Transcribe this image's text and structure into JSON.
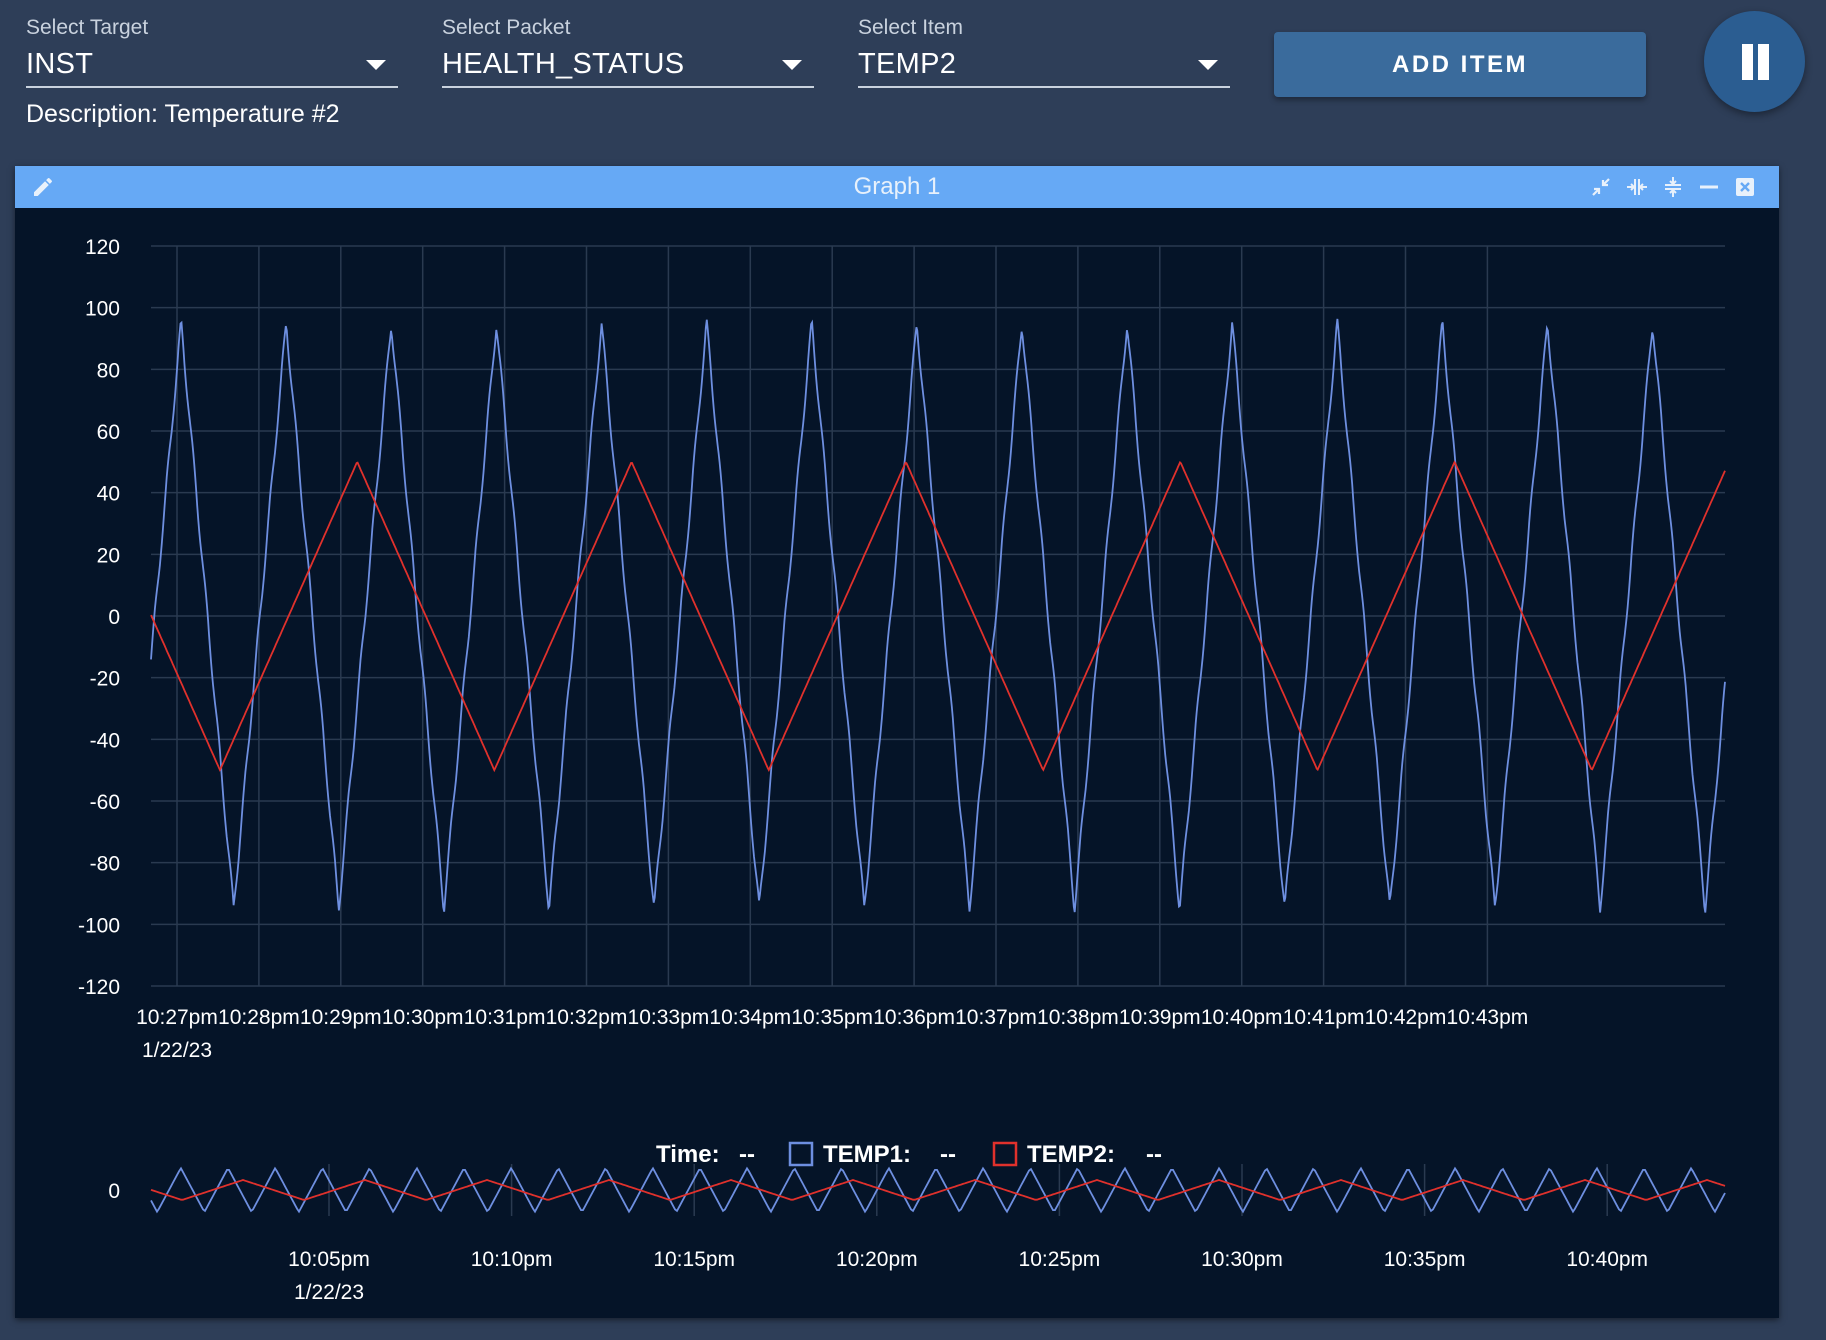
{
  "selectors": {
    "target": {
      "label": "Select Target",
      "value": "INST"
    },
    "packet": {
      "label": "Select Packet",
      "value": "HEALTH_STATUS"
    },
    "item": {
      "label": "Select Item",
      "value": "TEMP2"
    }
  },
  "description": "Description: Temperature #2",
  "add_item_label": "ADD ITEM",
  "icons": {
    "pause": "pause-icon",
    "edit": "pencil-icon",
    "collapse": "collapse-icon",
    "compress_horizontal": "compress-horizontal-icon",
    "compress_vertical": "compress-vertical-icon",
    "minimize": "minimize-icon",
    "close": "close-icon"
  },
  "graph": {
    "title": "Graph 1",
    "legend": {
      "time_label": "Time:",
      "time_value": "--",
      "temp1_label": "TEMP1:",
      "temp1_value": "--",
      "temp2_label": "TEMP2:",
      "temp2_value": "--"
    }
  },
  "chart_data": [
    {
      "type": "line",
      "title": "",
      "ylim": [
        -120,
        120
      ],
      "yticks": [
        120,
        100,
        80,
        60,
        40,
        20,
        0,
        -20,
        -40,
        -60,
        -80,
        -100,
        -120
      ],
      "x_tick_labels": [
        "10:27pm",
        "10:28pm",
        "10:29pm",
        "10:30pm",
        "10:31pm",
        "10:32pm",
        "10:33pm",
        "10:34pm",
        "10:35pm",
        "10:36pm",
        "10:37pm",
        "10:38pm",
        "10:39pm",
        "10:40pm",
        "10:41pm",
        "10:42pm",
        "10:43pm"
      ],
      "x_date_label": "1/22/23",
      "grid": true,
      "series": [
        {
          "name": "TEMP1",
          "color": "#6e8fe0",
          "description_values": "triangle wave between -95 and 95",
          "peaks_x_min": [
            0.05,
            1.33,
            2.62,
            3.9,
            5.18,
            6.47,
            7.75,
            9.03,
            10.32,
            11.6,
            12.88,
            14.17,
            15.45
          ],
          "amplitude": 95
        },
        {
          "name": "TEMP2",
          "color": "#e0312c",
          "description_values": "triangle wave between -50 and 50",
          "peaks_x_min": [
            2.2,
            5.55,
            8.9,
            12.25,
            15.6
          ],
          "amplitude": 50
        }
      ]
    },
    {
      "type": "line",
      "title": "",
      "yticks": [
        0
      ],
      "x_tick_labels": [
        "10:05pm",
        "10:10pm",
        "10:15pm",
        "10:20pm",
        "10:25pm",
        "10:30pm",
        "10:35pm",
        "10:40pm"
      ],
      "x_date_label": "1/22/23",
      "series": [
        {
          "name": "TEMP1",
          "color": "#6e8fe0"
        },
        {
          "name": "TEMP2",
          "color": "#e0312c"
        }
      ]
    }
  ]
}
